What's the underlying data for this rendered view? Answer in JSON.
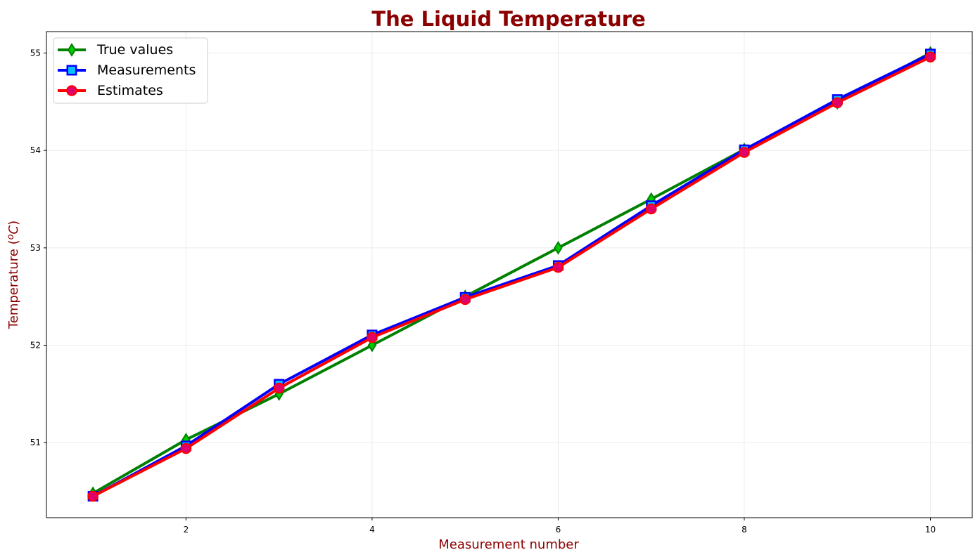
{
  "chart_data": {
    "type": "line",
    "title": "The Liquid  Temperature",
    "xlabel": "Measurement number",
    "ylabel_text": "Temperature (",
    "ylabel_sup": "o",
    "ylabel_unit": "C",
    "ylabel_close": ")",
    "xlim": [
      0.5,
      10.45
    ],
    "ylim": [
      50.23,
      55.22
    ],
    "xticks": [
      2,
      4,
      6,
      8,
      10
    ],
    "yticks": [
      51,
      52,
      53,
      54,
      55
    ],
    "grid": true,
    "legend_position": "top-left",
    "x": [
      1,
      2,
      3,
      4,
      5,
      6,
      7,
      8,
      9,
      10
    ],
    "series": [
      {
        "name": "True values",
        "color": "#008000",
        "marker": "diamond",
        "marker_fill": "#00cc00",
        "values": [
          50.48,
          51.03,
          51.5,
          52.0,
          52.5,
          53.0,
          53.5,
          54.01,
          54.49,
          55.0
        ]
      },
      {
        "name": "Measurements",
        "color": "#0000ff",
        "marker": "square",
        "marker_fill": "#00bfff",
        "values": [
          50.45,
          50.967,
          51.6,
          52.106,
          52.492,
          52.819,
          53.433,
          54.007,
          54.523,
          54.99
        ]
      },
      {
        "name": "Estimates",
        "color": "#ff0000",
        "marker": "circle",
        "marker_fill": "#e0006b",
        "values": [
          50.45,
          50.94,
          51.56,
          52.08,
          52.47,
          52.8,
          53.4,
          53.98,
          54.49,
          54.96
        ]
      }
    ]
  }
}
